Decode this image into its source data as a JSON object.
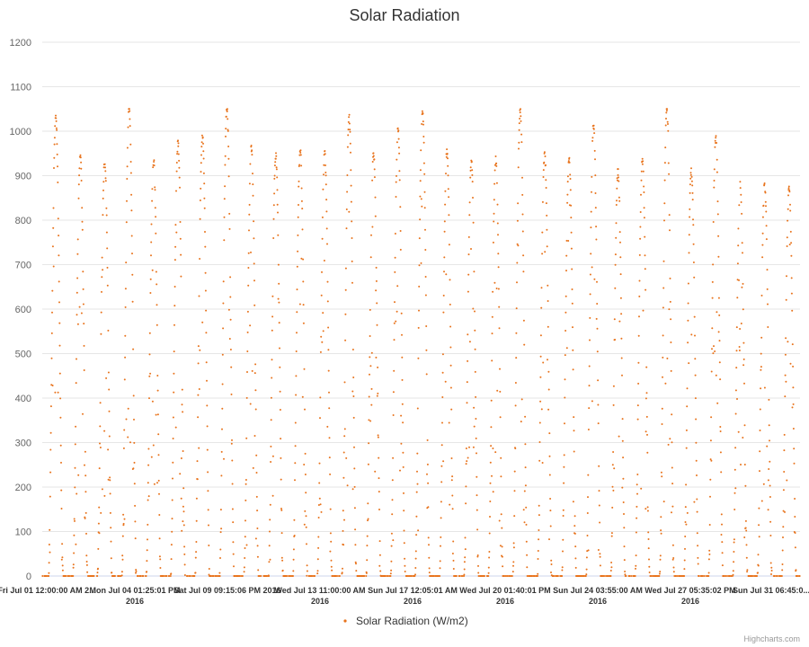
{
  "chart_data": {
    "type": "scatter",
    "title": "Solar Radiation",
    "xlabel": "",
    "ylabel": "",
    "ylim": [
      0,
      1200
    ],
    "y_ticks": [
      0,
      100,
      200,
      300,
      400,
      500,
      600,
      700,
      800,
      900,
      1000,
      1100,
      1200
    ],
    "x_range": [
      "2016-07-01T00:00",
      "2016-08-01T00:00"
    ],
    "x_tick_labels": [
      {
        "line1": "Fri Jul 01 12:00:00 AM 2...",
        "line2": ""
      },
      {
        "line1": "Mon Jul 04 01:25:01 PM",
        "line2": "2016"
      },
      {
        "line1": "Sat Jul 09 09:15:06 PM 2016",
        "line2": ""
      },
      {
        "line1": "Wed Jul 13 11:00:00 AM",
        "line2": "2016"
      },
      {
        "line1": "Sun Jul 17 12:05:01 AM",
        "line2": "2016"
      },
      {
        "line1": "Wed Jul 20 01:40:01 PM",
        "line2": "2016"
      },
      {
        "line1": "Sun Jul 24 03:55:00 AM",
        "line2": "2016"
      },
      {
        "line1": "Wed Jul 27 05:35:02 PM",
        "line2": "2016"
      },
      {
        "line1": "Sun Jul 31 06:45:0...",
        "line2": ""
      }
    ],
    "series": [
      {
        "name": "Solar Radiation (W/m2)",
        "color": "#e8731c",
        "marker": "dot",
        "daily_peaks": [
          {
            "date": "2016-07-01",
            "peak": 1035
          },
          {
            "date": "2016-07-02",
            "peak": 940
          },
          {
            "date": "2016-07-03",
            "peak": 935
          },
          {
            "date": "2016-07-04",
            "peak": 1050
          },
          {
            "date": "2016-07-05",
            "peak": 935
          },
          {
            "date": "2016-07-06",
            "peak": 975
          },
          {
            "date": "2016-07-07",
            "peak": 995
          },
          {
            "date": "2016-07-08",
            "peak": 1050
          },
          {
            "date": "2016-07-09",
            "peak": 960
          },
          {
            "date": "2016-07-10",
            "peak": 945
          },
          {
            "date": "2016-07-11",
            "peak": 955
          },
          {
            "date": "2016-07-12",
            "peak": 950
          },
          {
            "date": "2016-07-13",
            "peak": 1030
          },
          {
            "date": "2016-07-14",
            "peak": 945
          },
          {
            "date": "2016-07-15",
            "peak": 1000
          },
          {
            "date": "2016-07-16",
            "peak": 1050
          },
          {
            "date": "2016-07-17",
            "peak": 950
          },
          {
            "date": "2016-07-18",
            "peak": 935
          },
          {
            "date": "2016-07-19",
            "peak": 935
          },
          {
            "date": "2016-07-20",
            "peak": 1050
          },
          {
            "date": "2016-07-21",
            "peak": 950
          },
          {
            "date": "2016-07-22",
            "peak": 945
          },
          {
            "date": "2016-07-23",
            "peak": 1015
          },
          {
            "date": "2016-07-24",
            "peak": 910
          },
          {
            "date": "2016-07-25",
            "peak": 935
          },
          {
            "date": "2016-07-26",
            "peak": 1050
          },
          {
            "date": "2016-07-27",
            "peak": 910
          },
          {
            "date": "2016-07-28",
            "peak": 985
          },
          {
            "date": "2016-07-29",
            "peak": 880
          },
          {
            "date": "2016-07-30",
            "peak": 880
          },
          {
            "date": "2016-07-31",
            "peak": 870
          }
        ]
      }
    ],
    "grid": true,
    "legend_position": "bottom-center",
    "credit": "Highcharts.com"
  }
}
